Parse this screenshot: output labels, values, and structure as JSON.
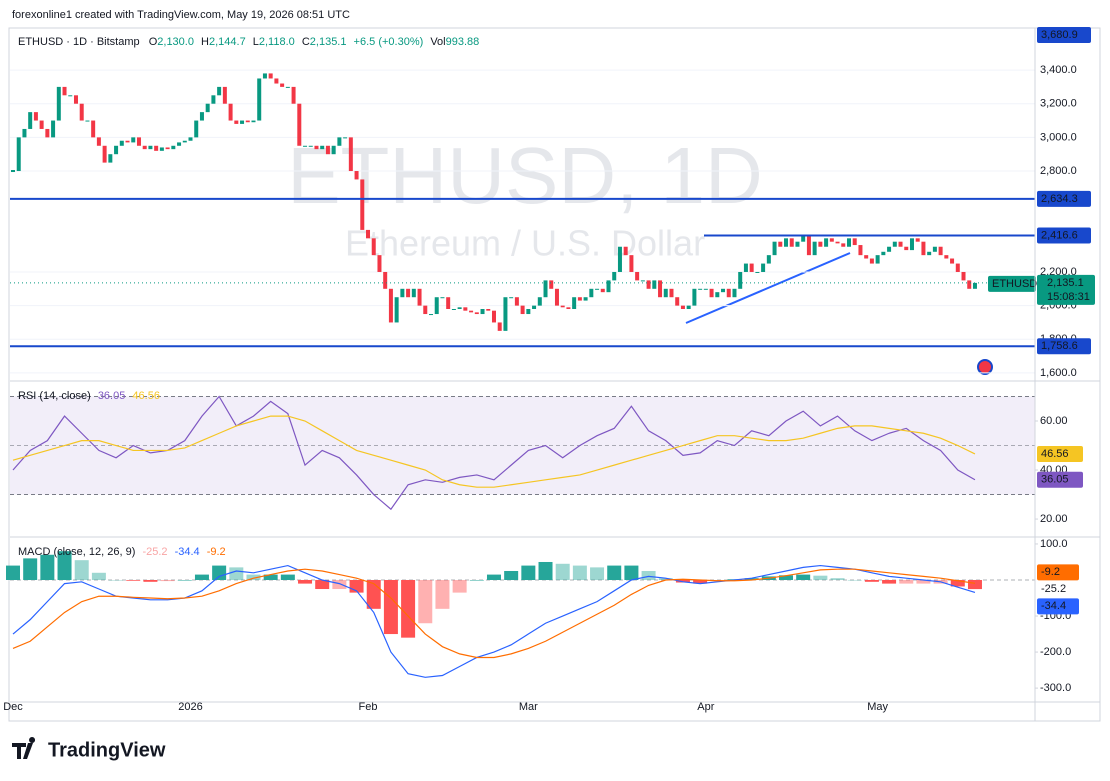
{
  "header": {
    "credit": "forexonline1 created with TradingView.com, May 19, 2026 08:51 UTC"
  },
  "legend": {
    "symbol": "ETHUSD · 1D · Bitstamp",
    "open_key": "O",
    "open": "2,130.0",
    "high_key": "H",
    "high": "2,144.7",
    "low_key": "L",
    "low": "2,118.0",
    "close_key": "C",
    "close": "2,135.1",
    "change": "+6.5 (+0.30%)",
    "volume_key": "Vol",
    "volume": "993.88"
  },
  "watermark": {
    "symbol": "ETHUSD, 1D",
    "name": "Ethereum / U.S. Dollar"
  },
  "footer": {
    "brand": "TradingView"
  },
  "chart_data": [
    {
      "type": "candlestick",
      "up_color": "#089981",
      "down_color": "#f23645",
      "months": [
        {
          "label": "Dec",
          "closes": [
            2800,
            3000,
            3050,
            3150,
            3100,
            3050,
            3000,
            3100,
            3300,
            3250,
            3250,
            3200,
            3100,
            3100,
            3000,
            2950,
            2850,
            2900,
            2950,
            2980,
            2970,
            3000,
            2950,
            2930,
            2950,
            2920,
            2940,
            2930,
            2950,
            2970,
            2980
          ]
        },
        {
          "label": "2026",
          "closes": [
            3000,
            3100,
            3150,
            3200,
            3250,
            3300,
            3200,
            3100,
            3080,
            3100,
            3090,
            3100,
            3350,
            3380,
            3350,
            3320,
            3300,
            3300,
            3200,
            2950,
            2950,
            2950,
            2930,
            2950,
            2900,
            2950,
            3000,
            3000,
            2800,
            2750,
            2450
          ]
        },
        {
          "label": "Feb",
          "closes": [
            2400,
            2300,
            2200,
            2100,
            1900,
            2050,
            2100,
            2050,
            2100,
            2000,
            1950,
            1950,
            2050,
            2050,
            1980,
            1980,
            1990,
            1970,
            1960,
            1950,
            1980,
            1970,
            1900,
            1850,
            2050,
            2050,
            2000,
            1950
          ]
        },
        {
          "label": "Mar",
          "closes": [
            1980,
            2000,
            2050,
            2150,
            2100,
            2000,
            1990,
            1980,
            2050,
            2030,
            2050,
            2100,
            2100,
            2080,
            2150,
            2200,
            2350,
            2300,
            2200,
            2150,
            2150,
            2100,
            2150,
            2050,
            2100,
            2050,
            2000,
            1980,
            2000,
            2100,
            2100
          ]
        },
        {
          "label": "Apr",
          "closes": [
            2100,
            2050,
            2080,
            2100,
            2050,
            2100,
            2200,
            2250,
            2200,
            2200,
            2250,
            2300,
            2380,
            2350,
            2400,
            2350,
            2380,
            2420,
            2300,
            2380,
            2350,
            2400,
            2380,
            2370,
            2350,
            2400,
            2360,
            2300,
            2280,
            2250
          ]
        },
        {
          "label": "May",
          "closes": [
            2300,
            2320,
            2350,
            2380,
            2350,
            2330,
            2400,
            2380,
            2300,
            2320,
            2350,
            2300,
            2280,
            2250,
            2200,
            2150,
            2100,
            2135.1
          ]
        }
      ],
      "ylim": [
        1558,
        3650
      ],
      "yticks": [
        {
          "value": 1600,
          "label": "1,600.0"
        },
        {
          "value": 1800,
          "label": "1,800.0"
        },
        {
          "value": 2000,
          "label": "2,000.0"
        },
        {
          "value": 2200,
          "label": "2,200.0"
        },
        {
          "value": 2800,
          "label": "2,800.0"
        },
        {
          "value": 3000,
          "label": "3,000.0"
        },
        {
          "value": 3200,
          "label": "3,200.0"
        },
        {
          "value": 3400,
          "label": "3,400.0"
        }
      ],
      "levels": [
        {
          "value": 2634.3,
          "label": "2,634.3"
        },
        {
          "value": 2416.6,
          "label": "2,416.6"
        },
        {
          "value": 1758.6,
          "label": "1,758.6"
        }
      ],
      "level_color": "#1848cc",
      "high_label": {
        "value": 3680.9,
        "label": "3,680.9"
      },
      "current": {
        "value": 2135.1,
        "label": "2,135.1",
        "symbol": "ETHUSD",
        "countdown": "15:08:31"
      }
    },
    {
      "type": "line",
      "title": "RSI (14, close)",
      "series": [
        {
          "color": "#7e57c2",
          "values": [
            40,
            48,
            52,
            62,
            55,
            48,
            45,
            50,
            47,
            48,
            52,
            62,
            70,
            58,
            62,
            68,
            63,
            42,
            48,
            45,
            38,
            30,
            24,
            34,
            36,
            35,
            37,
            38,
            36,
            42,
            48,
            50,
            45,
            50,
            54,
            57,
            66,
            56,
            52,
            46,
            47,
            52,
            50,
            56,
            54,
            60,
            64,
            58,
            62,
            56,
            52,
            55,
            57,
            52,
            48,
            40,
            36.05
          ]
        },
        {
          "color": "#f5c523",
          "values": [
            44,
            46,
            48,
            50,
            52,
            52,
            50,
            48,
            48,
            48,
            49,
            52,
            55,
            58,
            60,
            62,
            62,
            60,
            56,
            52,
            48,
            46,
            44,
            42,
            40,
            36,
            34,
            33,
            33,
            34,
            35,
            36,
            37,
            38,
            40,
            42,
            44,
            46,
            48,
            50,
            52,
            54,
            54,
            53,
            52,
            52,
            53,
            55,
            57,
            58,
            58,
            57,
            56,
            55,
            53,
            50,
            46.56
          ]
        }
      ],
      "ylim": [
        13.5,
        75.5
      ],
      "yticks": [
        {
          "value": 20,
          "label": "20.00"
        },
        {
          "value": 40,
          "label": "40.00"
        },
        {
          "value": 60,
          "label": "60.00"
        }
      ],
      "bands": [
        30,
        70
      ],
      "midline": 50
    },
    {
      "type": "macd",
      "title": "MACD (close, 12, 26, 9)",
      "series": [
        {
          "kind": "histogram",
          "color": "#26a69a",
          "negative_color": "#ff5252",
          "values": [
            40,
            60,
            70,
            80,
            55,
            20,
            0,
            -2,
            -5,
            -3,
            0,
            15,
            40,
            35,
            15,
            15,
            15,
            -10,
            -25,
            -25,
            -35,
            -80,
            -150,
            -160,
            -120,
            -80,
            -35,
            0,
            15,
            25,
            40,
            50,
            45,
            40,
            35,
            40,
            40,
            25,
            5,
            -7,
            -10,
            -3,
            2,
            5,
            10,
            13,
            15,
            12,
            5,
            0,
            -5,
            -10,
            -10,
            -10,
            -10,
            -18,
            -25.2
          ]
        },
        {
          "kind": "line",
          "color": "#2962ff",
          "values": [
            -150,
            -110,
            -60,
            -10,
            -5,
            -25,
            -45,
            -50,
            -55,
            -55,
            -50,
            -30,
            10,
            25,
            20,
            30,
            40,
            20,
            0,
            -10,
            -30,
            -90,
            -200,
            -260,
            -270,
            -265,
            -240,
            -215,
            -200,
            -180,
            -150,
            -120,
            -100,
            -80,
            -60,
            -30,
            0,
            10,
            5,
            -5,
            -10,
            -5,
            0,
            5,
            15,
            25,
            35,
            40,
            35,
            30,
            20,
            10,
            5,
            0,
            -5,
            -20,
            -34.4
          ]
        },
        {
          "kind": "line",
          "color": "#ff6d00",
          "values": [
            -190,
            -170,
            -130,
            -90,
            -60,
            -45,
            -45,
            -48,
            -50,
            -52,
            -50,
            -45,
            -30,
            -10,
            5,
            15,
            25,
            30,
            25,
            15,
            5,
            -10,
            -50,
            -100,
            -150,
            -185,
            -205,
            -215,
            -215,
            -205,
            -190,
            -170,
            -145,
            -120,
            -95,
            -70,
            -40,
            -15,
            0,
            2,
            0,
            -2,
            -2,
            0,
            5,
            12,
            20,
            28,
            30,
            30,
            25,
            20,
            15,
            10,
            5,
            -2,
            -9.2
          ]
        }
      ],
      "ylim": [
        -333,
        111
      ],
      "yticks": [
        {
          "value": -300,
          "label": "-300.0"
        },
        {
          "value": -200,
          "label": "-200.0"
        },
        {
          "value": -100,
          "label": "-100.0"
        },
        {
          "value": 100,
          "label": "100.0"
        }
      ],
      "zero": 0
    }
  ]
}
